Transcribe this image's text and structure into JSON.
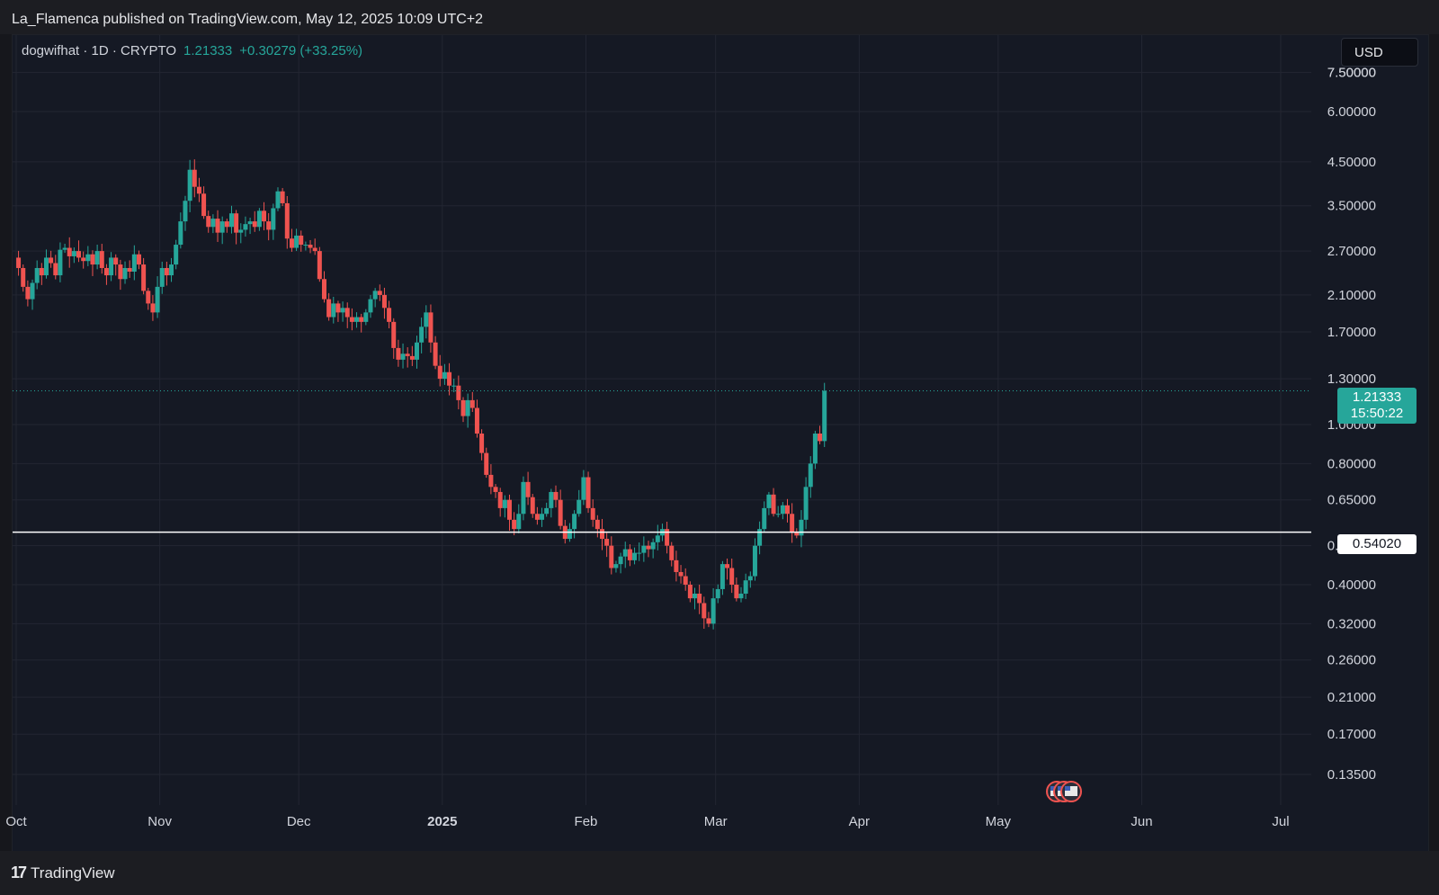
{
  "header": {
    "publisher": "La_Flamenca published on TradingView.com, May 12, 2025 10:09 UTC+2"
  },
  "legend": {
    "symbol": "dogwifhat · 1D · CRYPTO",
    "price": "1.21333",
    "change": "+0.30279 (+33.25%)"
  },
  "currency": "USD",
  "footer": {
    "logo_mark": "17",
    "logo_text": "TradingView"
  },
  "colors": {
    "up": "#26a69a",
    "down": "#ef5350",
    "background": "#151924",
    "grid": "#232632",
    "level": "#ffffff"
  },
  "chart_data": {
    "type": "candlestick",
    "y_scale": "log",
    "y_ticks": [
      "7.50000",
      "6.00000",
      "4.50000",
      "3.50000",
      "2.70000",
      "2.10000",
      "1.70000",
      "1.30000",
      "1.00000",
      "0.80000",
      "0.65000",
      "0.50000",
      "0.40000",
      "0.32000",
      "0.26000",
      "0.21000",
      "0.17000",
      "0.13500"
    ],
    "x_ticks": [
      "Oct",
      "Nov",
      "Dec",
      "2025",
      "Feb",
      "Mar",
      "Apr",
      "May",
      "Jun",
      "Jul"
    ],
    "x_range": [
      "2024-10-01",
      "2025-07-01"
    ],
    "last_price": {
      "value": 1.21333,
      "label": "1.21333",
      "countdown": "15:50:22"
    },
    "horizontal_level": {
      "value": 0.5402,
      "label": "0.54020"
    },
    "closes": [
      2.45,
      2.2,
      2.05,
      2.25,
      2.45,
      2.35,
      2.6,
      2.52,
      2.35,
      2.72,
      2.75,
      2.62,
      2.7,
      2.6,
      2.55,
      2.65,
      2.5,
      2.7,
      2.45,
      2.35,
      2.6,
      2.5,
      2.3,
      2.45,
      2.4,
      2.65,
      2.5,
      2.15,
      2.0,
      1.9,
      2.2,
      2.45,
      2.35,
      2.5,
      2.8,
      3.2,
      3.6,
      4.3,
      3.9,
      3.75,
      3.3,
      3.1,
      3.25,
      3.0,
      3.2,
      3.1,
      3.35,
      3.0,
      3.05,
      3.15,
      3.2,
      3.1,
      3.4,
      3.2,
      3.05,
      3.45,
      3.8,
      3.55,
      2.9,
      2.75,
      2.95,
      2.8,
      2.8,
      2.75,
      2.7,
      2.3,
      2.05,
      1.85,
      2.0,
      1.9,
      1.95,
      1.85,
      1.8,
      1.85,
      1.8,
      1.9,
      2.05,
      2.15,
      2.1,
      1.95,
      1.8,
      1.55,
      1.45,
      1.5,
      1.48,
      1.45,
      1.6,
      1.75,
      1.9,
      1.6,
      1.4,
      1.3,
      1.35,
      1.25,
      1.25,
      1.15,
      1.05,
      1.15,
      1.1,
      0.95,
      0.85,
      0.75,
      0.7,
      0.68,
      0.62,
      0.65,
      0.58,
      0.55,
      0.6,
      0.72,
      0.66,
      0.6,
      0.58,
      0.6,
      0.62,
      0.68,
      0.65,
      0.56,
      0.52,
      0.55,
      0.6,
      0.65,
      0.74,
      0.62,
      0.58,
      0.55,
      0.52,
      0.5,
      0.44,
      0.45,
      0.47,
      0.49,
      0.46,
      0.48,
      0.48,
      0.5,
      0.49,
      0.51,
      0.53,
      0.55,
      0.5,
      0.46,
      0.43,
      0.42,
      0.4,
      0.37,
      0.38,
      0.36,
      0.33,
      0.32,
      0.37,
      0.39,
      0.45,
      0.44,
      0.4,
      0.37,
      0.38,
      0.41,
      0.42,
      0.5,
      0.55,
      0.62,
      0.67,
      0.6,
      0.6,
      0.63,
      0.6,
      0.54,
      0.53,
      0.58,
      0.7,
      0.8,
      0.95,
      0.91,
      1.21333
    ]
  }
}
